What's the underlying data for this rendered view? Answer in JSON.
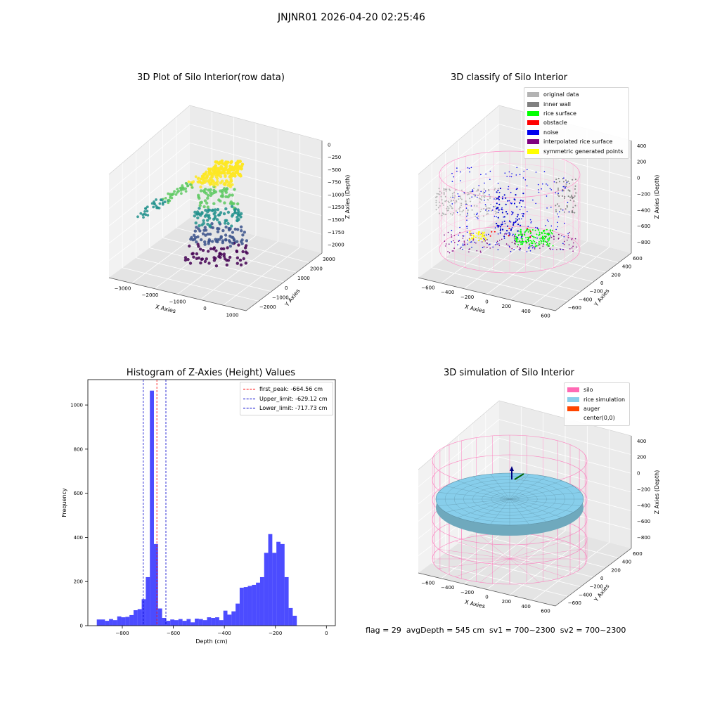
{
  "suptitle": "JNJNR01 2026-04-20 02:25:46",
  "panels": {
    "raw": {
      "title": "3D Plot of Silo Interior(row data)",
      "xlabel": "X Axies",
      "ylabel": "Y Axies",
      "zlabel": "Z Axies (Depth)",
      "xticks": [
        "−3000",
        "−2000",
        "−1000",
        "0",
        "1000"
      ],
      "yticks": [
        "−2000",
        "−1000",
        "0",
        "1000",
        "2000",
        "3000"
      ],
      "zticks": [
        "0",
        "−250",
        "−500",
        "−750",
        "−1000",
        "−1250",
        "−1500",
        "−1750",
        "−2000"
      ],
      "colormap": [
        "#440154",
        "#3b528b",
        "#21918c",
        "#5ec962",
        "#fde725"
      ]
    },
    "classify": {
      "title": "3D classify of Silo Interior",
      "xlabel": "X Axies",
      "ylabel": "Y Axies",
      "zlabel": "Z Axies (Depth)",
      "xticks": [
        "−600",
        "−400",
        "−200",
        "0",
        "200",
        "400",
        "600"
      ],
      "yticks": [
        "−600",
        "−400",
        "−200",
        "0",
        "200",
        "400",
        "600"
      ],
      "zticks": [
        "400",
        "200",
        "0",
        "−200",
        "−400",
        "−600",
        "−800"
      ],
      "legend": [
        {
          "label": "original data",
          "color": "#b3b3b3"
        },
        {
          "label": "inner wall",
          "color": "#808080"
        },
        {
          "label": "rice surface",
          "color": "#00ff00"
        },
        {
          "label": "obstacle",
          "color": "#ff0000"
        },
        {
          "label": "noise",
          "color": "#0000ee"
        },
        {
          "label": "interpolated rice surface",
          "color": "#800080"
        },
        {
          "label": "symmetric generated points",
          "color": "#ffff00"
        }
      ]
    },
    "simulation": {
      "title": "3D simulation of Silo Interior",
      "xlabel": "X Axies",
      "ylabel": "Y Axies",
      "zlabel": "Z Axies (Depth)",
      "xticks": [
        "−600",
        "−400",
        "−200",
        "0",
        "200",
        "400",
        "600"
      ],
      "yticks": [
        "−600",
        "−400",
        "−200",
        "0",
        "200",
        "400",
        "600"
      ],
      "zticks": [
        "400",
        "200",
        "0",
        "−200",
        "−400",
        "−600",
        "−800"
      ],
      "legend": [
        {
          "label": "silo",
          "color": "#ff69b4"
        },
        {
          "label": "rice simulation",
          "color": "#87ceeb"
        },
        {
          "label": "auger",
          "color": "#ff4500"
        },
        {
          "label": "center(0,0)",
          "color": "#ffffff"
        }
      ]
    }
  },
  "footer": "flag = 29  avgDepth = 545 cm  sv1 = 700~2300  sv2 = 700~2300",
  "chart_data": [
    {
      "type": "scatter",
      "title": "3D Plot of Silo Interior(row data)",
      "xlabel": "X Axies",
      "ylabel": "Y Axies",
      "zlabel": "Z Axies (Depth)",
      "xlim": [
        -3500,
        1500
      ],
      "ylim": [
        -2000,
        3000
      ],
      "zlim": [
        -2000,
        0
      ]
    },
    {
      "type": "scatter",
      "title": "3D classify of Silo Interior",
      "xlabel": "X Axies",
      "ylabel": "Y Axies",
      "zlabel": "Z Axies (Depth)",
      "xlim": [
        -700,
        700
      ],
      "ylim": [
        -700,
        700
      ],
      "zlim": [
        -900,
        400
      ],
      "series": [
        {
          "name": "original data"
        },
        {
          "name": "inner wall"
        },
        {
          "name": "rice surface"
        },
        {
          "name": "obstacle"
        },
        {
          "name": "noise"
        },
        {
          "name": "interpolated rice surface"
        },
        {
          "name": "symmetric generated points"
        }
      ]
    },
    {
      "type": "bar",
      "title": "Histogram of Z-Axies (Height) Values",
      "xlabel": "Depth (cm)",
      "ylabel": "Frequency",
      "xlim": [
        -935,
        35
      ],
      "ylim": [
        0,
        1115
      ],
      "xticks": [
        -800,
        -600,
        -400,
        -200,
        0
      ],
      "yticks": [
        0,
        200,
        400,
        600,
        800,
        1000
      ],
      "bin_start": -900,
      "bin_width": 16,
      "values": [
        28,
        28,
        22,
        30,
        25,
        42,
        38,
        40,
        48,
        70,
        75,
        120,
        220,
        1065,
        370,
        78,
        35,
        22,
        28,
        25,
        30,
        22,
        30,
        15,
        32,
        30,
        25,
        38,
        35,
        38,
        25,
        68,
        50,
        65,
        100,
        172,
        175,
        180,
        185,
        195,
        220,
        330,
        415,
        330,
        380,
        370,
        220,
        80,
        45
      ],
      "vlines": [
        {
          "label": "first_peak: -664.56 cm",
          "x": -664.56,
          "color": "#ff0000"
        },
        {
          "label": "Upper_limit: -629.12 cm",
          "x": -629.12,
          "color": "#0000cc"
        },
        {
          "label": "Lower_limit: -717.73 cm",
          "x": -717.73,
          "color": "#0000cc"
        }
      ]
    },
    {
      "type": "scatter",
      "title": "3D simulation of Silo Interior",
      "xlabel": "X Axies",
      "ylabel": "Y Axies",
      "zlabel": "Z Axies (Depth)",
      "xlim": [
        -700,
        700
      ],
      "ylim": [
        -700,
        700
      ],
      "zlim": [
        -900,
        400
      ],
      "series": [
        {
          "name": "silo"
        },
        {
          "name": "rice simulation"
        },
        {
          "name": "auger"
        },
        {
          "name": "center(0,0)"
        }
      ]
    }
  ]
}
